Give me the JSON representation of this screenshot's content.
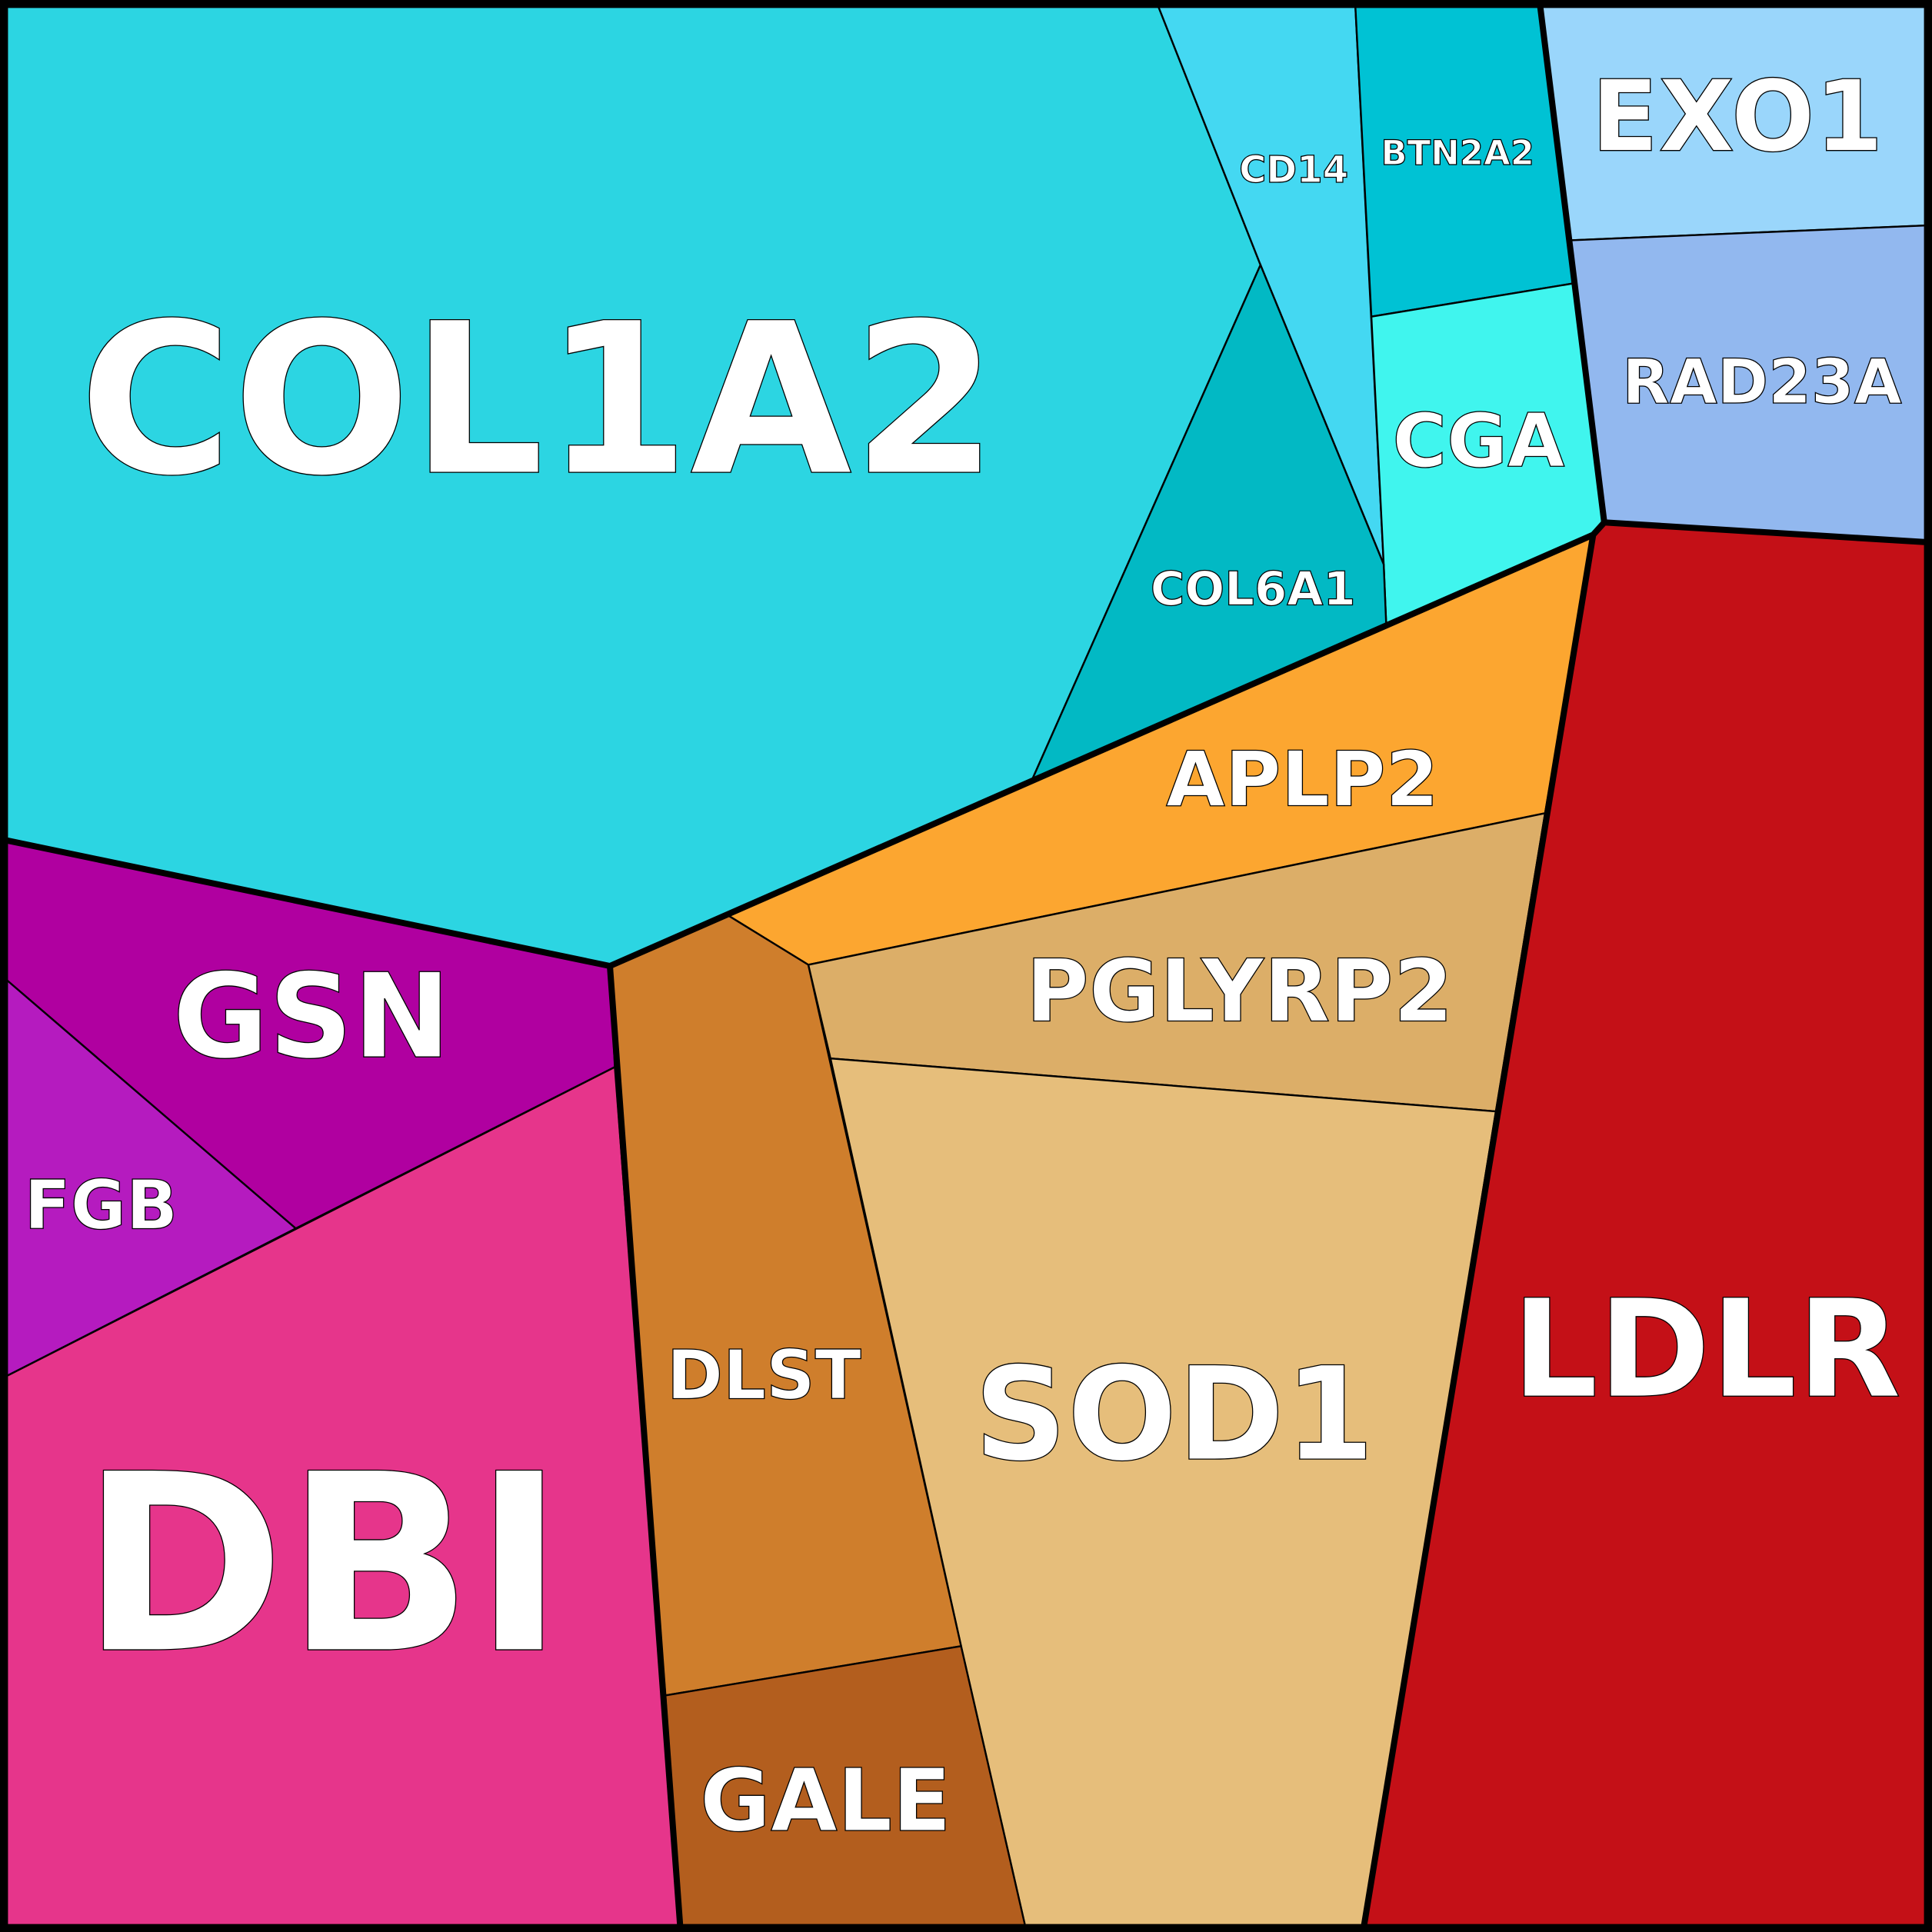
{
  "cells": [
    "COL1A2",
    "CD14",
    "BTN2A2",
    "EXO1",
    "CGA",
    "RAD23A",
    "COL6A1",
    "APLP2",
    "PGLYRP2",
    "GSN",
    "FGB",
    "DLST",
    "SOD1",
    "LDLR",
    "DBI",
    "GALE"
  ]
}
